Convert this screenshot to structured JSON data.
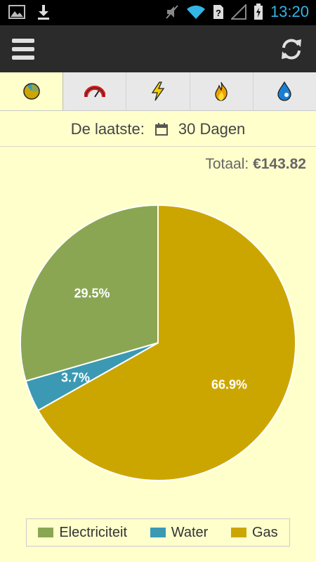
{
  "status_bar": {
    "time": "13:20"
  },
  "header": {
    "menu_icon": "menu-icon",
    "refresh_icon": "refresh-icon"
  },
  "tabs": [
    {
      "icon": "pie-chart-icon",
      "active": true
    },
    {
      "icon": "gauge-icon",
      "active": false
    },
    {
      "icon": "lightning-icon",
      "active": false
    },
    {
      "icon": "flame-icon",
      "active": false
    },
    {
      "icon": "water-drop-icon",
      "active": false
    }
  ],
  "period": {
    "label": "De laatste:",
    "icon": "calendar-icon",
    "value": "30 Dagen"
  },
  "total": {
    "label": "Totaal:",
    "value": "€143.82"
  },
  "colors": {
    "electricity": "#8aa653",
    "water": "#3b99b4",
    "gas": "#cca600",
    "background": "#ffffcc"
  },
  "chart_data": {
    "type": "pie",
    "slices": [
      {
        "name": "Gas",
        "value": 66.9,
        "label": "66.9%",
        "color": "#cca600"
      },
      {
        "name": "Water",
        "value": 3.7,
        "label": "3.7%",
        "color": "#3b99b4"
      },
      {
        "name": "Electriciteit",
        "value": 29.5,
        "label": "29.5%",
        "color": "#8aa653"
      }
    ],
    "legend": [
      "Electriciteit",
      "Water",
      "Gas"
    ],
    "legend_position": "bottom"
  }
}
